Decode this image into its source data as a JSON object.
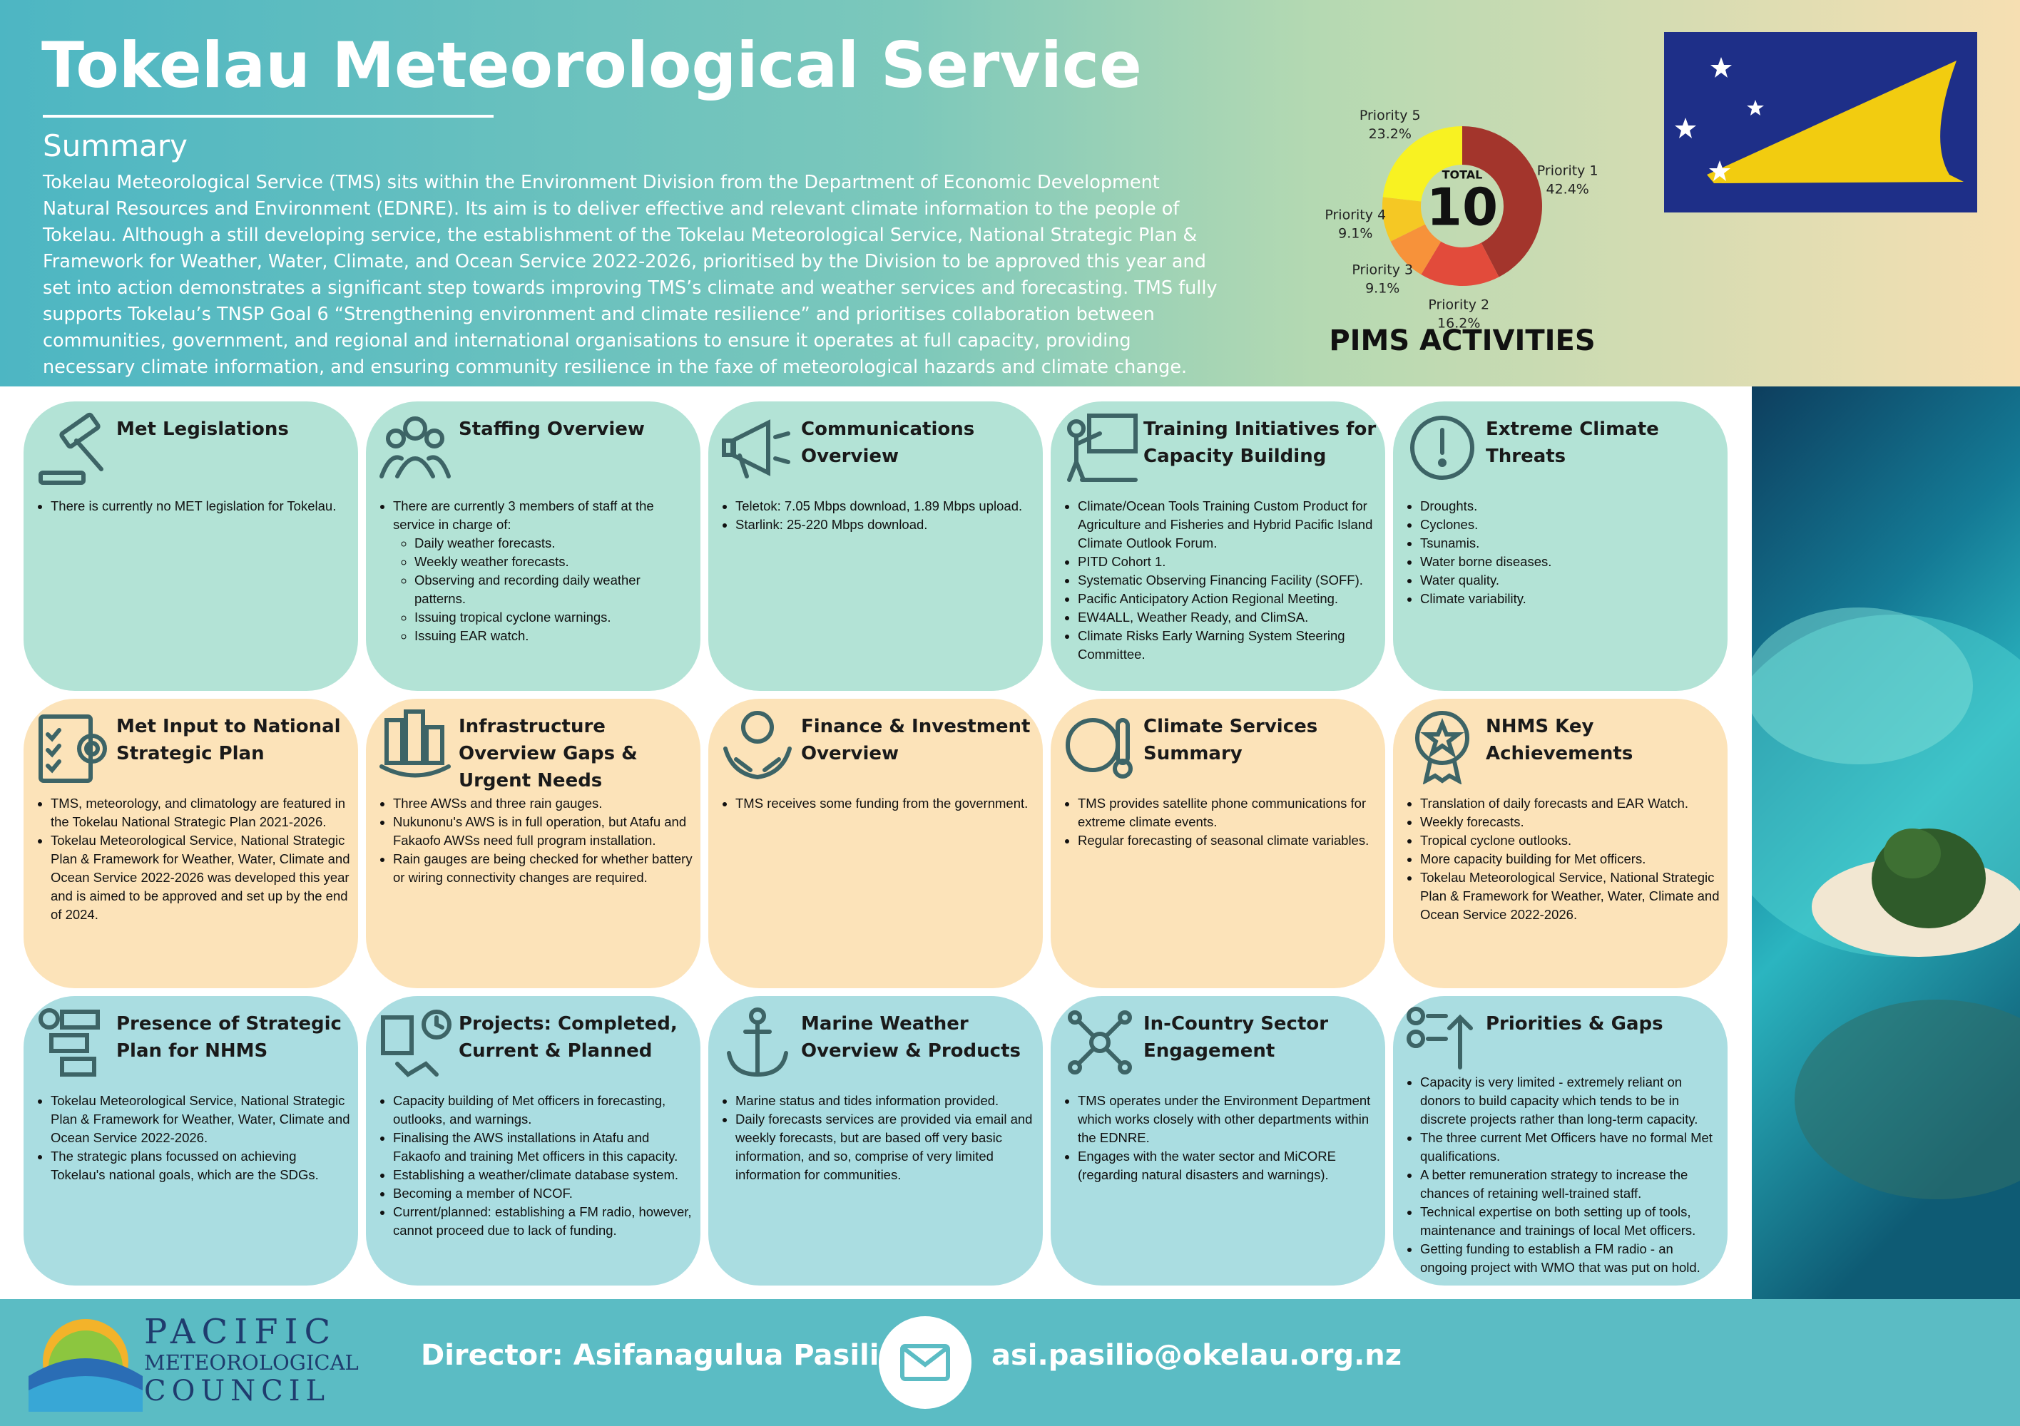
{
  "header": {
    "title": "Tokelau Meteorological Service",
    "summary_heading": "Summary",
    "summary": "Tokelau Meteorological Service (TMS) sits within the Environment Division from the Department of Economic Development Natural Resources and Environment (EDNRE). Its aim is to deliver effective and relevant climate information to the people of Tokelau. Although a still developing service, the establishment of the Tokelau Meteorological Service, National Strategic Plan & Framework for Weather, Water, Climate, and Ocean Service 2022-2026, prioritised by the Division to be approved this year and set into action demonstrates a significant step towards improving TMS’s climate and weather services and forecasting. TMS fully supports Tokelau’s TNSP Goal 6 “Strengthening environment and climate resilience” and prioritises collaboration between communities, government, and regional and international organisations to ensure it operates at full capacity, providing necessary climate information, and ensuring community resilience in the faxe of meteorological hazards and climate change."
  },
  "chart_data": {
    "type": "pie",
    "title": "PIMS ACTIVITIES",
    "center_label": "TOTAL",
    "total": 10,
    "categories": [
      "Priority 1",
      "Priority 2",
      "Priority 3",
      "Priority 4",
      "Priority 5"
    ],
    "values": [
      42.4,
      16.2,
      9.1,
      9.1,
      23.2
    ],
    "value_labels": [
      "42.4%",
      "16.2%",
      "9.1%",
      "9.1%",
      "23.2%"
    ],
    "colors": [
      "#a3352c",
      "#e24b3b",
      "#f7923a",
      "#f5c824",
      "#f8f222"
    ]
  },
  "cards": [
    {
      "title": "Met Legislations",
      "bullets": [
        "There is currently no MET legislation for Tokelau."
      ]
    },
    {
      "title": "Staffing Overview",
      "bullets": [
        "There are currently 3 members of staff at the service in charge of:"
      ],
      "sub_bullets": [
        "Daily weather forecasts.",
        "Weekly weather forecasts.",
        "Observing and recording daily weather patterns.",
        "Issuing tropical cyclone warnings.",
        "Issuing EAR watch."
      ]
    },
    {
      "title": "Communications Overview",
      "bullets": [
        "Teletok: 7.05 Mbps download, 1.89 Mbps upload.",
        "Starlink: 25-220 Mbps download."
      ]
    },
    {
      "title": "Training Initiatives for Capacity Building",
      "bullets": [
        "Climate/Ocean Tools Training Custom Product for Agriculture and Fisheries and Hybrid Pacific Island Climate Outlook Forum.",
        "PITD Cohort 1.",
        "Systematic Observing Financing Facility (SOFF).",
        "Pacific Anticipatory Action Regional Meeting.",
        "EW4ALL, Weather Ready, and ClimSA.",
        "Climate Risks Early Warning System Steering Committee."
      ]
    },
    {
      "title": "Extreme Climate Threats",
      "bullets": [
        "Droughts.",
        "Cyclones.",
        "Tsunamis.",
        "Water borne diseases.",
        "Water quality.",
        "Climate variability."
      ]
    },
    {
      "title": "Met Input to National Strategic Plan",
      "bullets": [
        "TMS, meteorology, and climatology are featured in the Tokelau National Strategic Plan 2021-2026.",
        "Tokelau Meteorological Service, National Strategic Plan & Framework for Weather, Water, Climate and Ocean Service 2022-2026 was developed this year and is aimed to be approved and set up by the end of 2024."
      ]
    },
    {
      "title": "Infrastructure Overview Gaps & Urgent Needs",
      "bullets": [
        "Three AWSs and three rain gauges.",
        "Nukunonu's AWS is in full operation, but Atafu and Fakaofo AWSs need full program installation.",
        "Rain gauges are being checked for whether battery or wiring connectivity changes are required."
      ]
    },
    {
      "title": "Finance & Investment Overview",
      "bullets": [
        "TMS receives some funding from the government."
      ]
    },
    {
      "title": "Climate Services Summary",
      "bullets": [
        "TMS provides satellite phone communications for extreme climate events.",
        "Regular forecasting of seasonal climate variables."
      ]
    },
    {
      "title": "NHMS Key Achievements",
      "bullets": [
        "Translation of daily forecasts and EAR Watch.",
        "Weekly forecasts.",
        "Tropical cyclone outlooks.",
        "More capacity building for Met officers.",
        "Tokelau Meteorological Service, National Strategic Plan & Framework for Weather, Water, Climate and Ocean Service 2022-2026."
      ]
    },
    {
      "title": "Presence of Strategic Plan for NHMS",
      "bullets": [
        "Tokelau Meteorological Service, National Strategic Plan & Framework for Weather, Water, Climate and Ocean Service 2022-2026.",
        "The strategic plans focussed on achieving Tokelau's national goals, which are the SDGs."
      ]
    },
    {
      "title": "Projects: Completed, Current & Planned",
      "bullets": [
        "Capacity building of Met officers in forecasting, outlooks, and warnings.",
        "Finalising the AWS installations in Atafu and Fakaofo and training Met officers in this capacity.",
        "Establishing a weather/climate database system.",
        "Becoming a member of NCOF.",
        "Current/planned: establishing a FM radio, however, cannot proceed due to lack of funding."
      ]
    },
    {
      "title": "Marine Weather Overview & Products",
      "bullets": [
        "Marine status and tides information provided.",
        "Daily forecasts services are provided via email and weekly forecasts, but are based off very basic information, and so, comprise of very limited information for communities."
      ]
    },
    {
      "title": "In-Country Sector Engagement",
      "bullets": [
        "TMS operates under the Environment Department which works closely with other departments within the EDNRE.",
        "Engages with the water sector and MiCORE (regarding natural disasters and warnings)."
      ]
    },
    {
      "title": "Priorities & Gaps",
      "bullets": [
        "Capacity is very limited - extremely reliant on donors to build capacity which tends to be in discrete projects rather than long-term capacity.",
        "The three current Met Officers have no formal Met qualifications.",
        "A better remuneration strategy to increase the chances of retaining well-trained staff.",
        "Technical expertise on both setting up of tools, maintenance and trainings of local Met officers.",
        "Getting funding to establish a FM radio - an ongoing project with WMO that was put on hold."
      ]
    }
  ],
  "footer": {
    "logo": [
      "PACIFIC",
      "METEOROLOGICAL",
      "COUNCIL"
    ],
    "director": "Director: Asifanagulua Pasilio",
    "email": "asi.pasilio@okelau.org.nz"
  }
}
